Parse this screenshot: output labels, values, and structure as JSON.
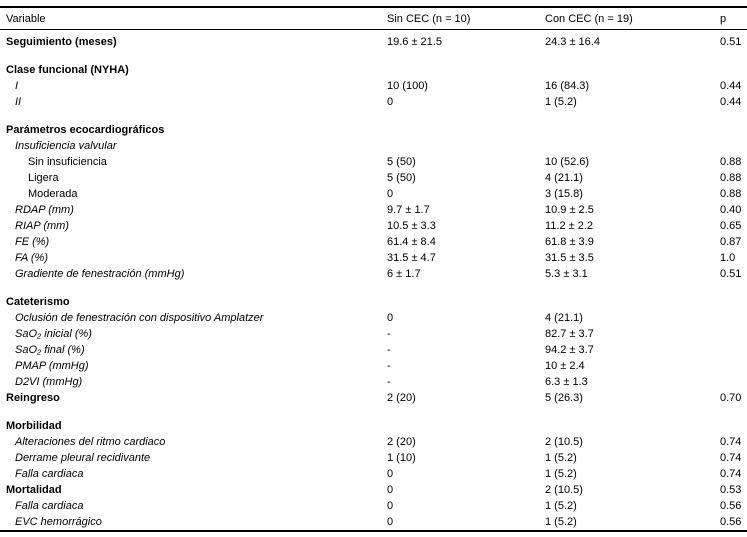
{
  "page": {
    "background_color": "#ffffff",
    "text_color": "#000000"
  },
  "table": {
    "columns": {
      "variable": "Variable",
      "sin_cec": "Sin CEC (n = 10)",
      "con_cec": "Con CEC (n = 19)",
      "p": "p"
    },
    "rows": [
      {
        "label": "Seguimiento (meses)",
        "indent": 0,
        "emphasis": "bold",
        "gap": false,
        "sin_cec": "19.6 ± 21.5",
        "con_cec": "24.3 ± 16.4",
        "p": "0.51"
      },
      {
        "label": "Clase funcional (NYHA)",
        "indent": 0,
        "emphasis": "bold",
        "gap": true,
        "sin_cec": "",
        "con_cec": "",
        "p": ""
      },
      {
        "label": "I",
        "indent": 1,
        "emphasis": "italic",
        "gap": false,
        "sin_cec": "10 (100)",
        "con_cec": "16 (84.3)",
        "p": "0.44"
      },
      {
        "label": "II",
        "indent": 1,
        "emphasis": "italic",
        "gap": false,
        "sin_cec": "0",
        "con_cec": "1 (5.2)",
        "p": "0.44"
      },
      {
        "label": "Parámetros ecocardiográficos",
        "indent": 0,
        "emphasis": "bold",
        "gap": true,
        "sin_cec": "",
        "con_cec": "",
        "p": ""
      },
      {
        "label": "Insuficiencia valvular",
        "indent": 1,
        "emphasis": "italic",
        "gap": false,
        "sin_cec": "",
        "con_cec": "",
        "p": ""
      },
      {
        "label": "Sin insuficiencia",
        "indent": 2,
        "emphasis": "plain",
        "gap": false,
        "sin_cec": "5 (50)",
        "con_cec": "10 (52.6)",
        "p": "0.88"
      },
      {
        "label": "Ligera",
        "indent": 2,
        "emphasis": "plain",
        "gap": false,
        "sin_cec": "5 (50)",
        "con_cec": "4 (21.1)",
        "p": "0.88"
      },
      {
        "label": "Moderada",
        "indent": 2,
        "emphasis": "plain",
        "gap": false,
        "sin_cec": "0",
        "con_cec": "3 (15.8)",
        "p": "0.88"
      },
      {
        "label": "RDAP (mm)",
        "indent": 1,
        "emphasis": "italic",
        "gap": false,
        "sin_cec": "9.7 ± 1.7",
        "con_cec": "10.9 ± 2.5",
        "p": "0.40"
      },
      {
        "label": "RIAP (mm)",
        "indent": 1,
        "emphasis": "italic",
        "gap": false,
        "sin_cec": "10.5 ± 3.3",
        "con_cec": "11.2 ± 2.2",
        "p": "0.65"
      },
      {
        "label": "FE (%)",
        "indent": 1,
        "emphasis": "italic",
        "gap": false,
        "sin_cec": "61.4 ± 8.4",
        "con_cec": "61.8 ± 3.9",
        "p": "0.87"
      },
      {
        "label": "FA (%)",
        "indent": 1,
        "emphasis": "italic",
        "gap": false,
        "sin_cec": "31.5 ± 4.7",
        "con_cec": "31.5 ± 3.5",
        "p": "1.0"
      },
      {
        "label": "Gradiente de fenestración (mmHg)",
        "indent": 1,
        "emphasis": "italic",
        "gap": false,
        "sin_cec": "6 ± 1.7",
        "con_cec": "5.3 ± 3.1",
        "p": "0.51"
      },
      {
        "label": "Cateterismo",
        "indent": 0,
        "emphasis": "bold",
        "gap": true,
        "sin_cec": "",
        "con_cec": "",
        "p": ""
      },
      {
        "label": "Oclusión de fenestración con dispositivo Amplatzer",
        "indent": 1,
        "emphasis": "italic",
        "gap": false,
        "sin_cec": "0",
        "con_cec": "4 (21.1)",
        "p": ""
      },
      {
        "label": "SaO₂ inicial (%)",
        "indent": 1,
        "emphasis": "italic",
        "gap": false,
        "sin_cec": "-",
        "con_cec": "82.7 ± 3.7",
        "p": ""
      },
      {
        "label": "SaO₂ final (%)",
        "indent": 1,
        "emphasis": "italic",
        "gap": false,
        "sin_cec": "-",
        "con_cec": "94.2 ± 3.7",
        "p": ""
      },
      {
        "label": "PMAP (mmHg)",
        "indent": 1,
        "emphasis": "italic",
        "gap": false,
        "sin_cec": "-",
        "con_cec": "10 ± 2.4",
        "p": ""
      },
      {
        "label": "D2VI (mmHg)",
        "indent": 1,
        "emphasis": "italic",
        "gap": false,
        "sin_cec": "-",
        "con_cec": "6.3 ± 1.3",
        "p": ""
      },
      {
        "label": "Reingreso",
        "indent": 0,
        "emphasis": "bold",
        "gap": false,
        "sin_cec": "2 (20)",
        "con_cec": "5 (26.3)",
        "p": "0.70"
      },
      {
        "label": "Morbilidad",
        "indent": 0,
        "emphasis": "bold",
        "gap": true,
        "sin_cec": "",
        "con_cec": "",
        "p": ""
      },
      {
        "label": "Alteraciones del ritmo cardiaco",
        "indent": 1,
        "emphasis": "italic",
        "gap": false,
        "sin_cec": "2 (20)",
        "con_cec": "2 (10.5)",
        "p": "0.74"
      },
      {
        "label": "Derrame pleural recidivante",
        "indent": 1,
        "emphasis": "italic",
        "gap": false,
        "sin_cec": "1 (10)",
        "con_cec": "1 (5.2)",
        "p": "0.74"
      },
      {
        "label": "Falla cardiaca",
        "indent": 1,
        "emphasis": "italic",
        "gap": false,
        "sin_cec": "0",
        "con_cec": "1 (5.2)",
        "p": "0.74"
      },
      {
        "label": "Mortalidad",
        "indent": 0,
        "emphasis": "bold",
        "gap": false,
        "sin_cec": "0",
        "con_cec": "2 (10.5)",
        "p": "0.53"
      },
      {
        "label": "Falla cardiaca",
        "indent": 1,
        "emphasis": "italic",
        "gap": false,
        "sin_cec": "0",
        "con_cec": "1 (5.2)",
        "p": "0.56"
      },
      {
        "label": "EVC hemorrágico",
        "indent": 1,
        "emphasis": "italic",
        "gap": false,
        "sin_cec": "0",
        "con_cec": "1 (5.2)",
        "p": "0.56"
      }
    ]
  }
}
